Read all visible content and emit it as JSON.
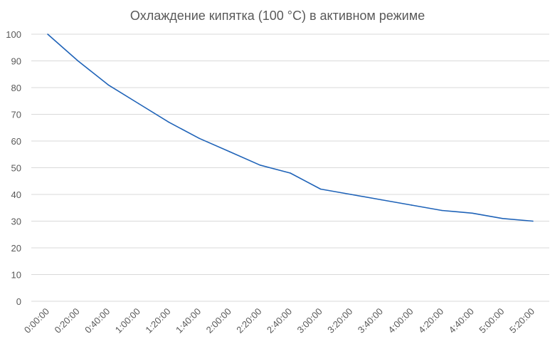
{
  "chart_data": {
    "type": "line",
    "title": "Охлаждение кипятка (100 °C) в активном режиме",
    "xlabel": "",
    "ylabel": "",
    "ylim": [
      0,
      100
    ],
    "yticks": [
      0,
      10,
      20,
      30,
      40,
      50,
      60,
      70,
      80,
      90,
      100
    ],
    "grid": true,
    "legend": "none",
    "colors": {
      "series": "#1f63b8",
      "grid": "#d9d9d9",
      "text": "#595959"
    },
    "categories": [
      "0:00:00",
      "0:20:00",
      "0:40:00",
      "1:00:00",
      "1:20:00",
      "1:40:00",
      "2:00:00",
      "2:20:00",
      "2:40:00",
      "3:00:00",
      "3:20:00",
      "3:40:00",
      "4:00:00",
      "4:20:00",
      "4:40:00",
      "5:00:00",
      "5:20:00"
    ],
    "series": [
      {
        "values": [
          100,
          90,
          81,
          74,
          67,
          61,
          56,
          51,
          48,
          42,
          40,
          38,
          36,
          34,
          33,
          31,
          30
        ]
      }
    ]
  }
}
